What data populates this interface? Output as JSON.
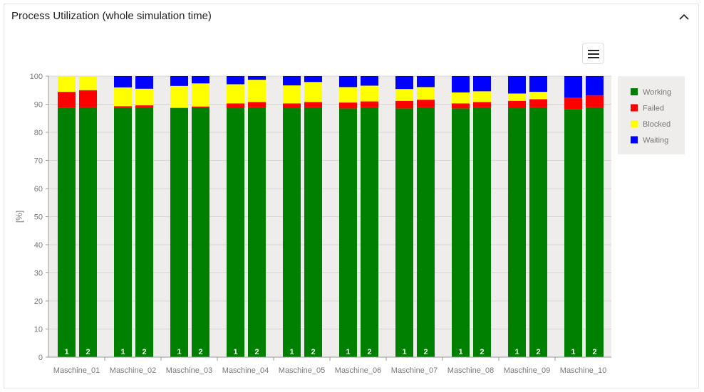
{
  "header": {
    "title": "Process Utilization (whole simulation time)",
    "collapse_icon": "chevron-up-icon"
  },
  "toolbar": {
    "menu_icon": "hamburger-menu-icon"
  },
  "chart_data": {
    "type": "bar",
    "stacked": true,
    "ylabel": "[%]",
    "ylim": [
      0,
      100
    ],
    "yticks": [
      0,
      10,
      20,
      30,
      40,
      50,
      60,
      70,
      80,
      90,
      100
    ],
    "grid": true,
    "legend_placement": "right",
    "categories": [
      "Maschine_01",
      "Maschine_02",
      "Maschine_03",
      "Maschine_04",
      "Maschine_05",
      "Maschine_06",
      "Maschine_07",
      "Maschine_08",
      "Maschine_09",
      "Maschine_10"
    ],
    "bar_labels": [
      "1",
      "2"
    ],
    "series": [
      {
        "name": "Working",
        "color": "#008000",
        "values": [
          [
            88.7,
            88.9
          ],
          [
            88.7,
            88.9
          ],
          [
            88.6,
            88.9
          ],
          [
            88.6,
            88.9
          ],
          [
            88.6,
            88.9
          ],
          [
            88.5,
            88.9
          ],
          [
            88.5,
            88.9
          ],
          [
            88.5,
            88.9
          ],
          [
            88.6,
            88.9
          ],
          [
            88.3,
            88.9
          ]
        ]
      },
      {
        "name": "Failed",
        "color": "#ff0000",
        "values": [
          [
            5.7,
            6.1
          ],
          [
            0.6,
            0.7
          ],
          [
            0.1,
            0.3
          ],
          [
            1.7,
            1.9
          ],
          [
            1.7,
            1.9
          ],
          [
            2.1,
            2.1
          ],
          [
            2.7,
            2.7
          ],
          [
            1.8,
            1.9
          ],
          [
            2.6,
            2.9
          ],
          [
            4.1,
            4.2
          ]
        ]
      },
      {
        "name": "Blocked",
        "color": "#ffff00",
        "values": [
          [
            5.6,
            5.0
          ],
          [
            6.7,
            5.9
          ],
          [
            7.8,
            8.2
          ],
          [
            6.8,
            7.9
          ],
          [
            6.4,
            7.1
          ],
          [
            5.5,
            5.6
          ],
          [
            4.2,
            4.5
          ],
          [
            3.9,
            3.8
          ],
          [
            2.6,
            2.6
          ],
          [
            0,
            0
          ]
        ]
      },
      {
        "name": "Waiting",
        "color": "#0000ff",
        "values": [
          [
            0,
            0
          ],
          [
            4.0,
            4.5
          ],
          [
            3.5,
            2.6
          ],
          [
            2.9,
            1.3
          ],
          [
            3.3,
            2.1
          ],
          [
            3.9,
            3.4
          ],
          [
            4.6,
            3.9
          ],
          [
            5.8,
            5.4
          ],
          [
            6.2,
            5.6
          ],
          [
            7.6,
            6.9
          ]
        ]
      }
    ]
  }
}
